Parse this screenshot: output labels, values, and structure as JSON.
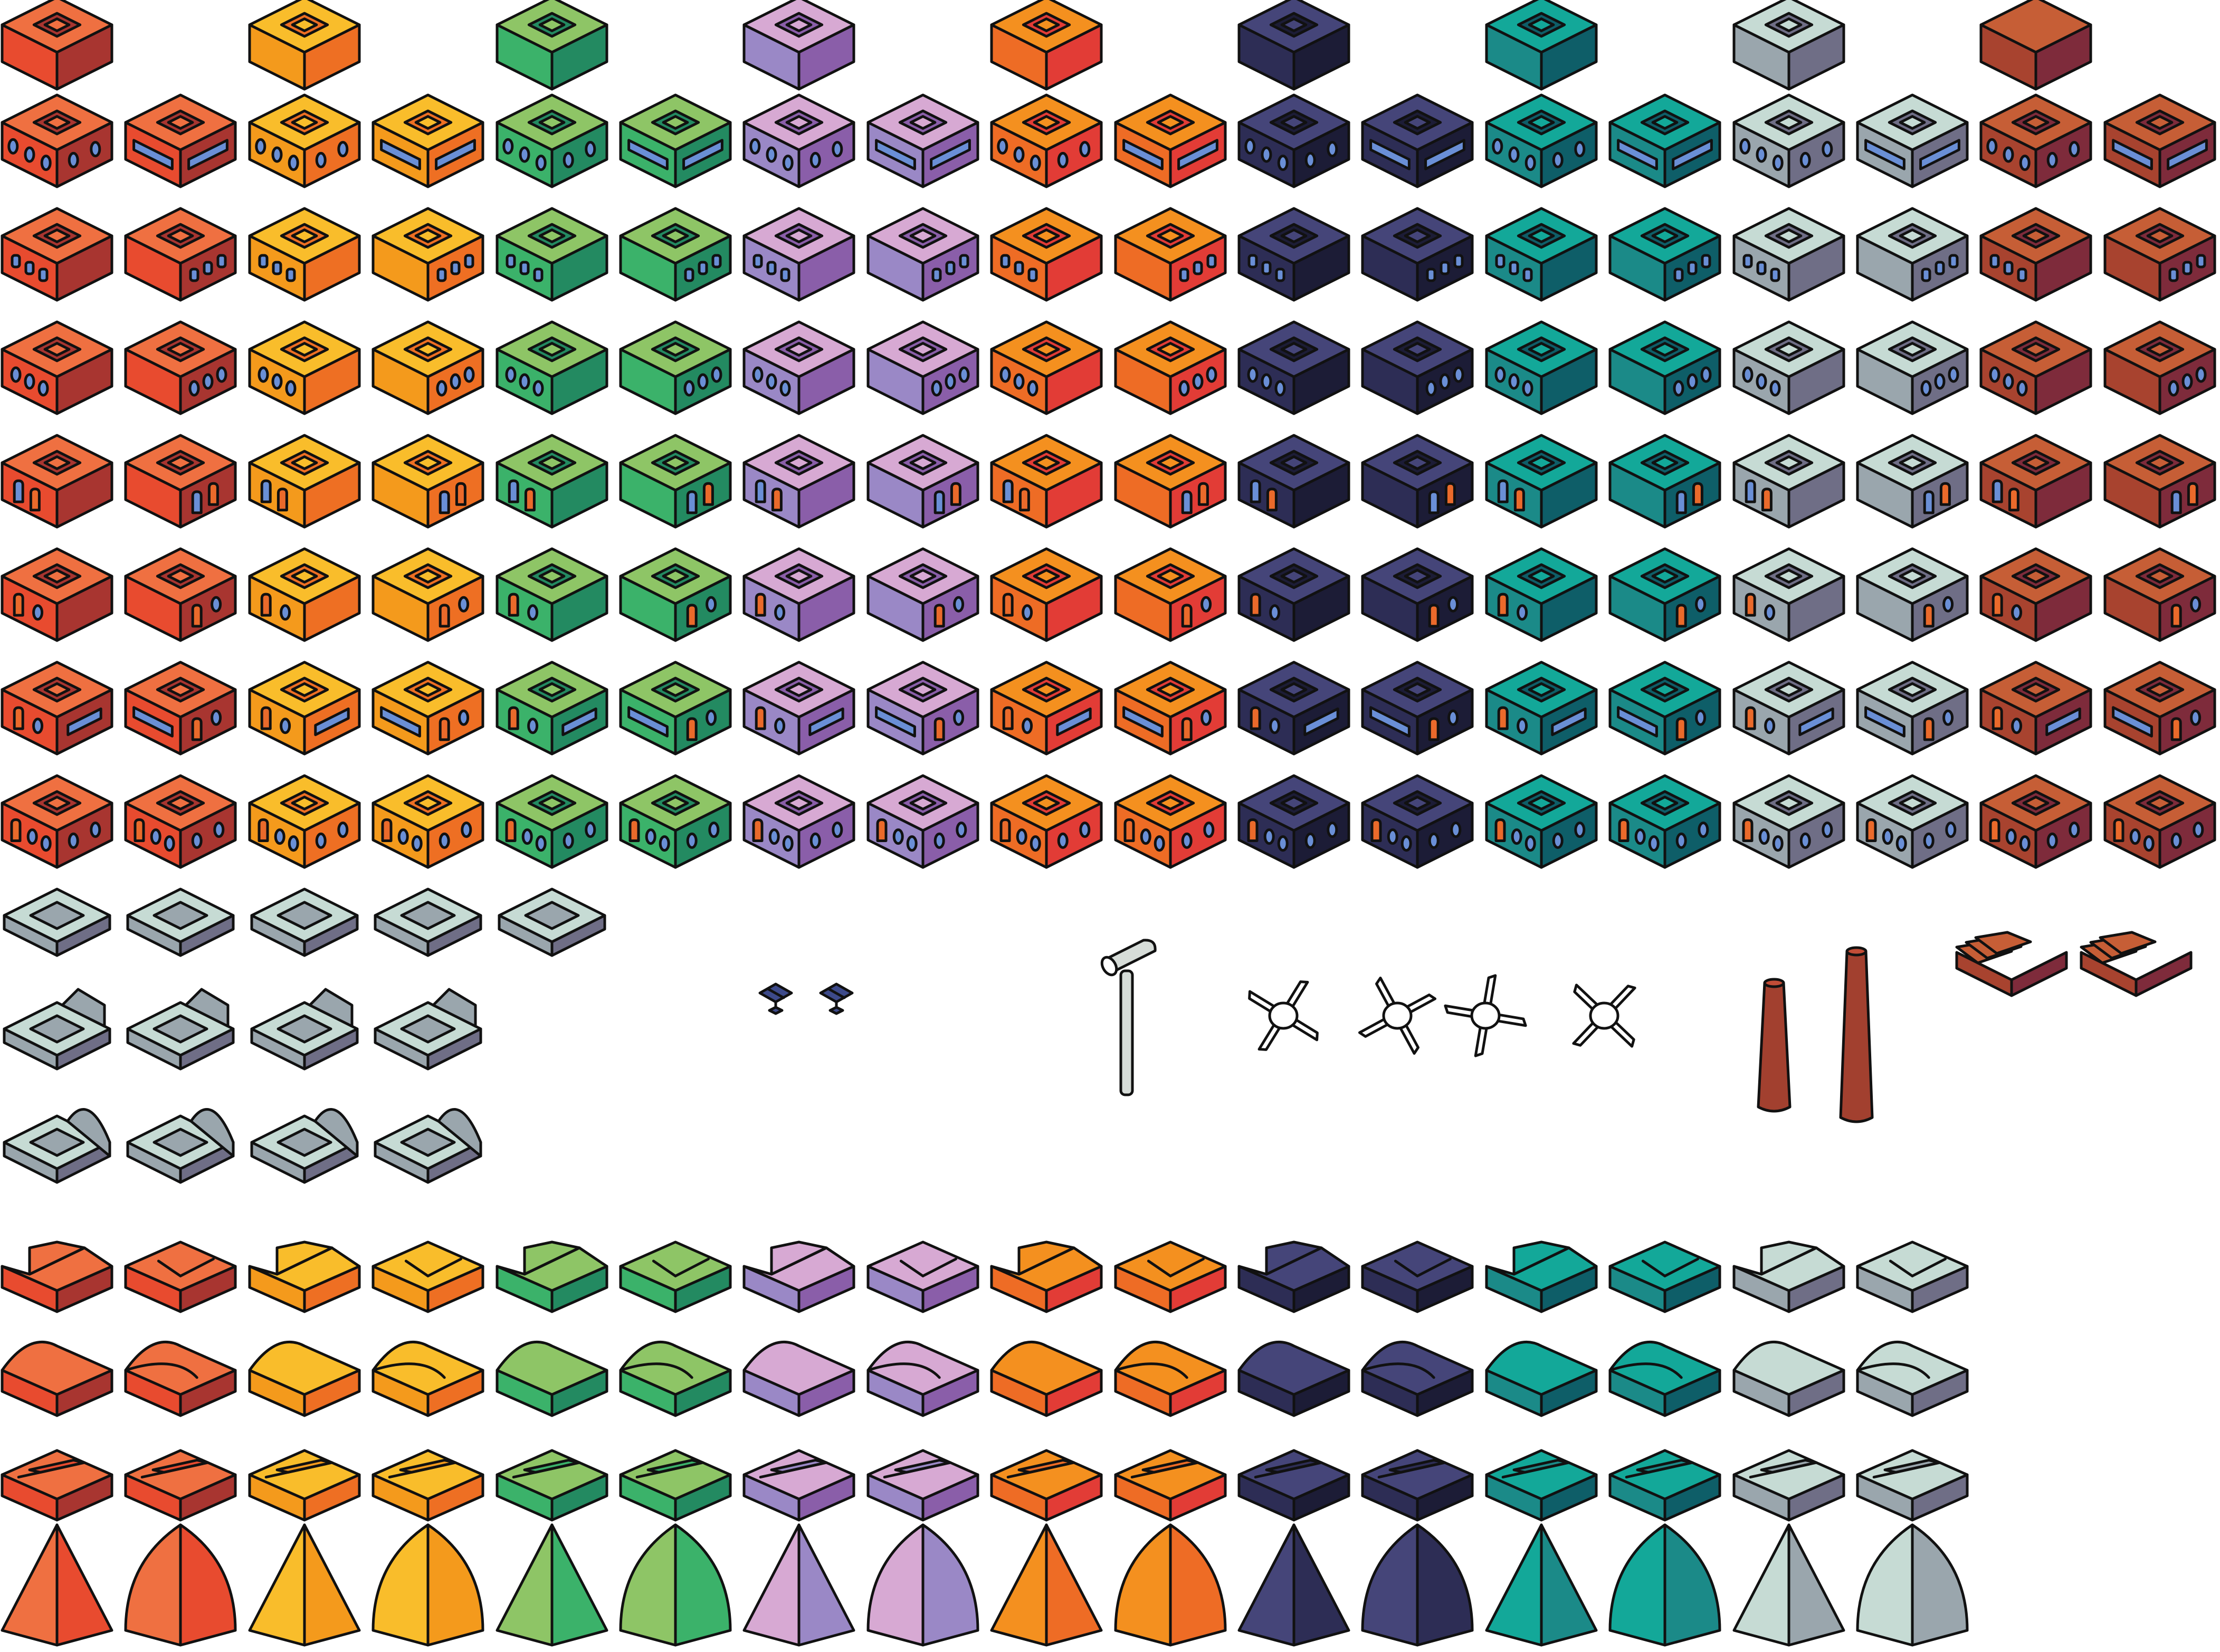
{
  "palettes": [
    {
      "name": "red",
      "top": "#ef7041",
      "left": "#e84b2f",
      "right": "#a83530"
    },
    {
      "name": "yellow",
      "top": "#f9bd2b",
      "left": "#f49a1c",
      "right": "#ee6f23"
    },
    {
      "name": "green",
      "top": "#8ec566",
      "left": "#3bb26a",
      "right": "#238a61"
    },
    {
      "name": "lilac",
      "top": "#d7a9d3",
      "left": "#9a88c6",
      "right": "#8a5ea9"
    },
    {
      "name": "orange",
      "top": "#f4901f",
      "left": "#ee6c25",
      "right": "#e23c36"
    },
    {
      "name": "navy",
      "top": "#454579",
      "left": "#2d2d55",
      "right": "#1c1c36"
    },
    {
      "name": "teal",
      "top": "#13a899",
      "left": "#1b8a88",
      "right": "#0e5e68"
    },
    {
      "name": "silver",
      "top": "#c6dbd4",
      "left": "#9aa6ad",
      "right": "#6f6e86"
    },
    {
      "name": "brick",
      "top": "#c65e36",
      "left": "#a8432f",
      "right": "#7e2b3b"
    }
  ],
  "accent": {
    "window": "#6a8fd6",
    "door": "#ea6a2b",
    "outline": "#111111",
    "chimney": "#a2402f",
    "pole": "#d6dcd8"
  },
  "rows": [
    {
      "kind": "plain-roof-block"
    },
    {
      "kind": "block-with-windows"
    },
    {
      "kind": "block-with-square-windows"
    },
    {
      "kind": "block-with-round-windows"
    },
    {
      "kind": "block-with-doors"
    },
    {
      "kind": "block-with-door-and-window"
    },
    {
      "kind": "block-with-door-and-long-window"
    },
    {
      "kind": "block-with-door-and-two-windows"
    }
  ],
  "roof_rows": [
    {
      "kind": "slanted-roof"
    },
    {
      "kind": "curved-roof"
    },
    {
      "kind": "stepped-roof"
    },
    {
      "kind": "dome-roof"
    }
  ],
  "props": [
    {
      "kind": "solar-panel"
    },
    {
      "kind": "solar-panel"
    },
    {
      "kind": "street-lamp"
    },
    {
      "kind": "fan-rotor"
    },
    {
      "kind": "fan-rotor"
    },
    {
      "kind": "fan-rotor"
    },
    {
      "kind": "fan-rotor"
    },
    {
      "kind": "chimney"
    },
    {
      "kind": "chimney"
    },
    {
      "kind": "sawtooth-roof"
    },
    {
      "kind": "sawtooth-roof"
    }
  ]
}
